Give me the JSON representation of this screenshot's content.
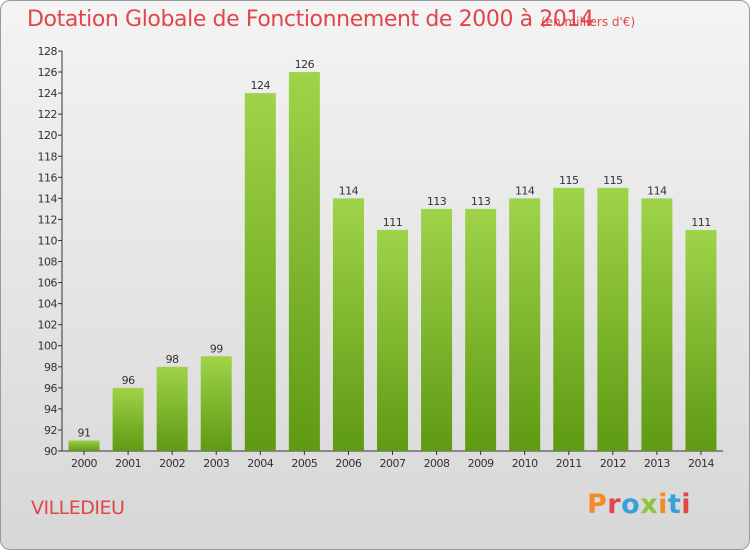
{
  "header": {
    "title": "Dotation Globale de Fonctionnement de 2000 à 2014",
    "unit_note": "(en milliers d'€)"
  },
  "footer": {
    "commune": "VILLEDIEU",
    "brand": "Proxiti"
  },
  "colors": {
    "title": "#e0464a",
    "bar_top": "#9fd34a",
    "bar_bottom": "#5e9a12",
    "axis": "#333333",
    "brand_letters": [
      "#f28c28",
      "#e0464a",
      "#3aa0d8",
      "#8cc63f",
      "#f28c28",
      "#3aa0d8",
      "#e0464a"
    ]
  },
  "chart_data": {
    "type": "bar",
    "title": "Dotation Globale de Fonctionnement de 2000 à 2014",
    "unit": "(en milliers d'€)",
    "categories": [
      "2000",
      "2001",
      "2002",
      "2003",
      "2004",
      "2005",
      "2006",
      "2007",
      "2008",
      "2009",
      "2010",
      "2011",
      "2012",
      "2013",
      "2014"
    ],
    "values": [
      91,
      96,
      98,
      99,
      124,
      126,
      114,
      111,
      113,
      113,
      114,
      115,
      115,
      114,
      111
    ],
    "ylim": [
      90,
      128
    ],
    "yticks": [
      90,
      92,
      94,
      96,
      98,
      100,
      102,
      104,
      106,
      108,
      110,
      112,
      114,
      116,
      118,
      120,
      122,
      124,
      126,
      128
    ],
    "grid": false,
    "legend": "none"
  }
}
